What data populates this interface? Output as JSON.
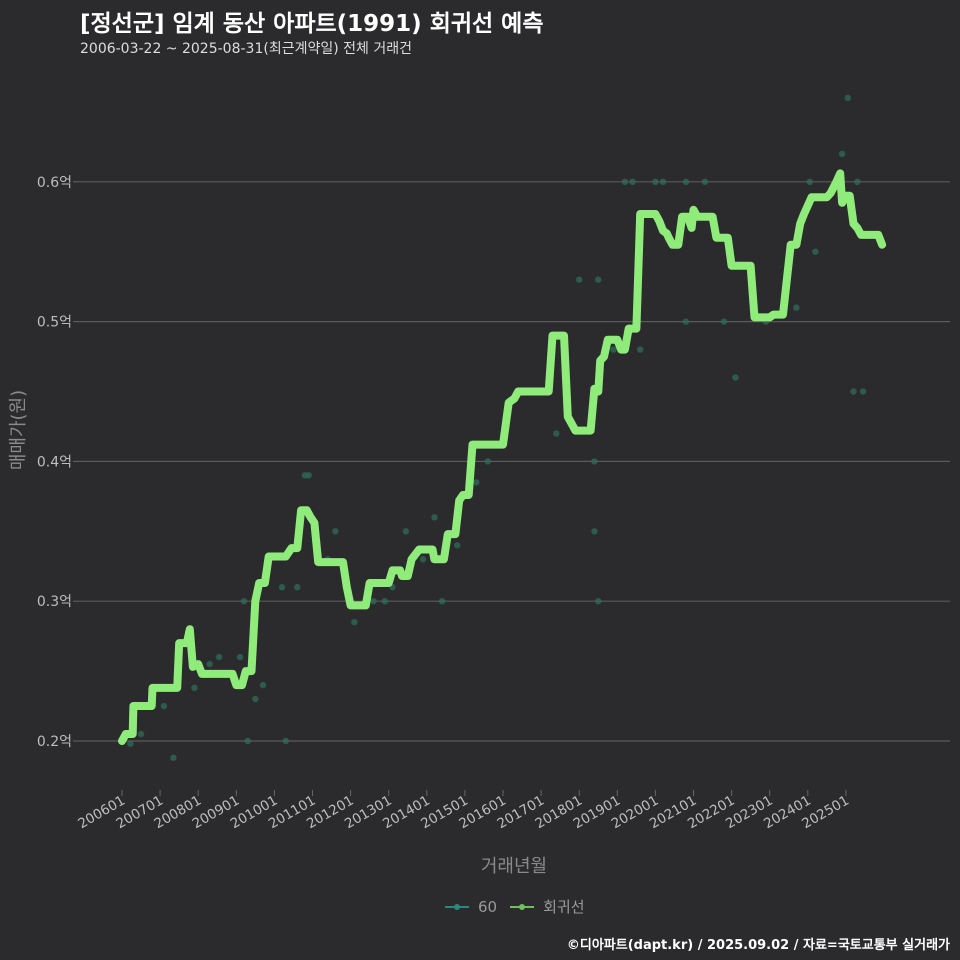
{
  "colors": {
    "background": "#2b2b2d",
    "grid": "#5a5a5a",
    "scatter": "#2f6e5a",
    "regression": "#8fec7a",
    "legend_60": "#2a8a7a",
    "legend_reg": "#6fbf5f"
  },
  "chart_data": {
    "type": "line",
    "title": "[정선군] 임계 동산 아파트(1991) 회귀선 예측",
    "subtitle": "2006-03-22 ~ 2025-08-31(최근계약일) 전체 거래건",
    "xlabel": "거래년월",
    "ylabel": "매매가(원)",
    "caption": "©디아파트(dapt.kr) / 2025.09.02 / 자료=국토교통부 실거래가",
    "xlim": [
      2006.0,
      2026.0
    ],
    "ylim": [
      0.17,
      0.68
    ],
    "x_ticks": [
      {
        "value": 2006.0,
        "label": "200601"
      },
      {
        "value": 2007.0,
        "label": "200701"
      },
      {
        "value": 2008.0,
        "label": "200801"
      },
      {
        "value": 2009.0,
        "label": "200901"
      },
      {
        "value": 2010.0,
        "label": "201001"
      },
      {
        "value": 2011.0,
        "label": "201101"
      },
      {
        "value": 2012.0,
        "label": "201201"
      },
      {
        "value": 2013.0,
        "label": "201301"
      },
      {
        "value": 2014.0,
        "label": "201401"
      },
      {
        "value": 2015.0,
        "label": "201501"
      },
      {
        "value": 2016.0,
        "label": "201601"
      },
      {
        "value": 2017.0,
        "label": "201701"
      },
      {
        "value": 2018.0,
        "label": "201801"
      },
      {
        "value": 2019.0,
        "label": "201901"
      },
      {
        "value": 2020.0,
        "label": "202001"
      },
      {
        "value": 2021.0,
        "label": "202101"
      },
      {
        "value": 2022.0,
        "label": "202201"
      },
      {
        "value": 2023.0,
        "label": "202301"
      },
      {
        "value": 2024.0,
        "label": "202401"
      },
      {
        "value": 2025.0,
        "label": "202501"
      }
    ],
    "y_ticks": [
      {
        "value": 0.2,
        "label": "0.2억"
      },
      {
        "value": 0.3,
        "label": "0.3억"
      },
      {
        "value": 0.4,
        "label": "0.4억"
      },
      {
        "value": 0.5,
        "label": "0.5억"
      },
      {
        "value": 0.6,
        "label": "0.6억"
      }
    ],
    "legend": [
      {
        "name": "60",
        "key": "legend_60"
      },
      {
        "name": "회귀선",
        "key": "legend_reg"
      }
    ],
    "series": [
      {
        "name": "60",
        "kind": "scatter",
        "points": [
          [
            2006.22,
            0.198
          ],
          [
            2006.5,
            0.205
          ],
          [
            2006.8,
            0.225
          ],
          [
            2007.1,
            0.225
          ],
          [
            2007.35,
            0.188
          ],
          [
            2007.6,
            0.27
          ],
          [
            2007.9,
            0.238
          ],
          [
            2008.3,
            0.255
          ],
          [
            2008.55,
            0.26
          ],
          [
            2008.8,
            0.248
          ],
          [
            2009.1,
            0.26
          ],
          [
            2009.2,
            0.3
          ],
          [
            2009.3,
            0.2
          ],
          [
            2009.5,
            0.23
          ],
          [
            2009.7,
            0.24
          ],
          [
            2010.2,
            0.31
          ],
          [
            2010.3,
            0.2
          ],
          [
            2010.6,
            0.31
          ],
          [
            2010.8,
            0.39
          ],
          [
            2010.9,
            0.39
          ],
          [
            2011.4,
            0.33
          ],
          [
            2011.6,
            0.35
          ],
          [
            2012.1,
            0.285
          ],
          [
            2012.6,
            0.3
          ],
          [
            2012.9,
            0.3
          ],
          [
            2013.1,
            0.31
          ],
          [
            2013.45,
            0.35
          ],
          [
            2013.9,
            0.33
          ],
          [
            2014.2,
            0.36
          ],
          [
            2014.4,
            0.3
          ],
          [
            2014.8,
            0.34
          ],
          [
            2015.3,
            0.385
          ],
          [
            2015.6,
            0.4
          ],
          [
            2017.4,
            0.42
          ],
          [
            2018.0,
            0.53
          ],
          [
            2018.4,
            0.4
          ],
          [
            2018.4,
            0.35
          ],
          [
            2018.5,
            0.3
          ],
          [
            2018.5,
            0.53
          ],
          [
            2018.9,
            0.48
          ],
          [
            2019.2,
            0.6
          ],
          [
            2019.4,
            0.6
          ],
          [
            2019.6,
            0.48
          ],
          [
            2020.0,
            0.6
          ],
          [
            2020.2,
            0.6
          ],
          [
            2020.8,
            0.5
          ],
          [
            2020.8,
            0.6
          ],
          [
            2021.3,
            0.6
          ],
          [
            2021.8,
            0.5
          ],
          [
            2022.1,
            0.46
          ],
          [
            2022.9,
            0.5
          ],
          [
            2023.7,
            0.51
          ],
          [
            2024.05,
            0.6
          ],
          [
            2024.2,
            0.55
          ],
          [
            2024.7,
            0.595
          ],
          [
            2024.9,
            0.62
          ],
          [
            2025.05,
            0.66
          ],
          [
            2025.2,
            0.45
          ],
          [
            2025.3,
            0.6
          ],
          [
            2025.45,
            0.45
          ]
        ]
      },
      {
        "name": "회귀선",
        "kind": "line",
        "points": [
          [
            2006.0,
            0.2
          ],
          [
            2006.1,
            0.205
          ],
          [
            2006.28,
            0.205
          ],
          [
            2006.3,
            0.225
          ],
          [
            2006.78,
            0.225
          ],
          [
            2006.8,
            0.238
          ],
          [
            2007.45,
            0.238
          ],
          [
            2007.5,
            0.27
          ],
          [
            2007.7,
            0.27
          ],
          [
            2007.78,
            0.28
          ],
          [
            2007.86,
            0.253
          ],
          [
            2008.0,
            0.255
          ],
          [
            2008.1,
            0.248
          ],
          [
            2008.9,
            0.248
          ],
          [
            2009.0,
            0.24
          ],
          [
            2009.15,
            0.24
          ],
          [
            2009.25,
            0.25
          ],
          [
            2009.4,
            0.25
          ],
          [
            2009.5,
            0.3
          ],
          [
            2009.6,
            0.313
          ],
          [
            2009.75,
            0.313
          ],
          [
            2009.85,
            0.332
          ],
          [
            2010.3,
            0.332
          ],
          [
            2010.45,
            0.338
          ],
          [
            2010.6,
            0.338
          ],
          [
            2010.7,
            0.365
          ],
          [
            2010.85,
            0.365
          ],
          [
            2010.95,
            0.36
          ],
          [
            2011.05,
            0.356
          ],
          [
            2011.15,
            0.328
          ],
          [
            2011.8,
            0.328
          ],
          [
            2011.9,
            0.31
          ],
          [
            2012.0,
            0.297
          ],
          [
            2012.4,
            0.297
          ],
          [
            2012.5,
            0.313
          ],
          [
            2013.0,
            0.313
          ],
          [
            2013.1,
            0.322
          ],
          [
            2013.3,
            0.322
          ],
          [
            2013.35,
            0.318
          ],
          [
            2013.5,
            0.318
          ],
          [
            2013.6,
            0.33
          ],
          [
            2013.8,
            0.337
          ],
          [
            2014.15,
            0.337
          ],
          [
            2014.2,
            0.33
          ],
          [
            2014.45,
            0.33
          ],
          [
            2014.55,
            0.348
          ],
          [
            2014.75,
            0.348
          ],
          [
            2014.85,
            0.372
          ],
          [
            2014.95,
            0.376
          ],
          [
            2015.1,
            0.376
          ],
          [
            2015.2,
            0.412
          ],
          [
            2016.0,
            0.412
          ],
          [
            2016.15,
            0.442
          ],
          [
            2016.3,
            0.445
          ],
          [
            2016.4,
            0.45
          ],
          [
            2017.2,
            0.45
          ],
          [
            2017.3,
            0.49
          ],
          [
            2017.6,
            0.49
          ],
          [
            2017.7,
            0.432
          ],
          [
            2017.9,
            0.422
          ],
          [
            2018.3,
            0.422
          ],
          [
            2018.4,
            0.452
          ],
          [
            2018.5,
            0.45
          ],
          [
            2018.55,
            0.472
          ],
          [
            2018.65,
            0.475
          ],
          [
            2018.75,
            0.487
          ],
          [
            2019.0,
            0.487
          ],
          [
            2019.1,
            0.48
          ],
          [
            2019.2,
            0.48
          ],
          [
            2019.3,
            0.495
          ],
          [
            2019.5,
            0.495
          ],
          [
            2019.6,
            0.577
          ],
          [
            2020.0,
            0.577
          ],
          [
            2020.1,
            0.572
          ],
          [
            2020.2,
            0.565
          ],
          [
            2020.3,
            0.563
          ],
          [
            2020.35,
            0.56
          ],
          [
            2020.45,
            0.555
          ],
          [
            2020.6,
            0.555
          ],
          [
            2020.7,
            0.575
          ],
          [
            2020.85,
            0.575
          ],
          [
            2020.95,
            0.567
          ],
          [
            2021.0,
            0.58
          ],
          [
            2021.1,
            0.575
          ],
          [
            2021.5,
            0.575
          ],
          [
            2021.6,
            0.56
          ],
          [
            2021.9,
            0.56
          ],
          [
            2022.0,
            0.54
          ],
          [
            2022.5,
            0.54
          ],
          [
            2022.6,
            0.503
          ],
          [
            2023.0,
            0.503
          ],
          [
            2023.1,
            0.505
          ],
          [
            2023.35,
            0.505
          ],
          [
            2023.55,
            0.555
          ],
          [
            2023.7,
            0.555
          ],
          [
            2023.8,
            0.57
          ],
          [
            2023.9,
            0.577
          ],
          [
            2024.0,
            0.583
          ],
          [
            2024.1,
            0.589
          ],
          [
            2024.5,
            0.589
          ],
          [
            2024.6,
            0.592
          ],
          [
            2024.75,
            0.6
          ],
          [
            2024.85,
            0.606
          ],
          [
            2024.9,
            0.585
          ],
          [
            2025.0,
            0.59
          ],
          [
            2025.1,
            0.59
          ],
          [
            2025.2,
            0.57
          ],
          [
            2025.3,
            0.567
          ],
          [
            2025.4,
            0.562
          ],
          [
            2025.85,
            0.562
          ],
          [
            2025.95,
            0.555
          ]
        ]
      }
    ]
  }
}
